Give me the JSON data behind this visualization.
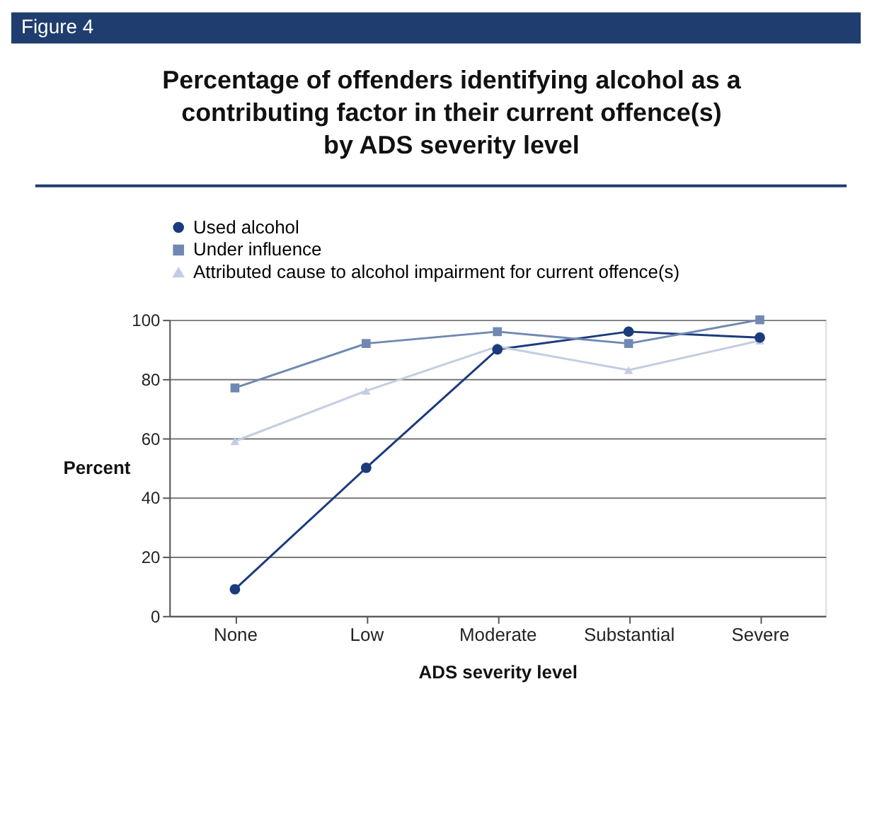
{
  "chart_data": {
    "type": "line",
    "title": "Percentage of offenders identifying alcohol as a\ncontributing factor in their current offence(s)\nby ADS severity level",
    "annotations": [
      "Figure 4"
    ],
    "xlabel": "ADS severity level",
    "ylabel": "Percent",
    "categories": [
      "None",
      "Low",
      "Moderate",
      "Substantial",
      "Severe"
    ],
    "series": [
      {
        "name": "Used alcohol",
        "color": "#1b3b7c",
        "marker": "circle",
        "values": [
          9,
          50,
          90,
          96,
          94
        ]
      },
      {
        "name": "Under influence",
        "color": "#7088b3",
        "marker": "square",
        "values": [
          77,
          92,
          96,
          92,
          100
        ]
      },
      {
        "name": "Attributed cause to alcohol impairment for current offence(s)",
        "color": "#c3cde2",
        "marker": "triangle",
        "values": [
          59,
          76,
          91,
          83,
          93
        ]
      }
    ],
    "ylim": [
      0,
      100
    ],
    "yticks": [
      0,
      20,
      40,
      60,
      80,
      100
    ],
    "grid": "y",
    "legend": "top left",
    "line_style": "solid"
  }
}
